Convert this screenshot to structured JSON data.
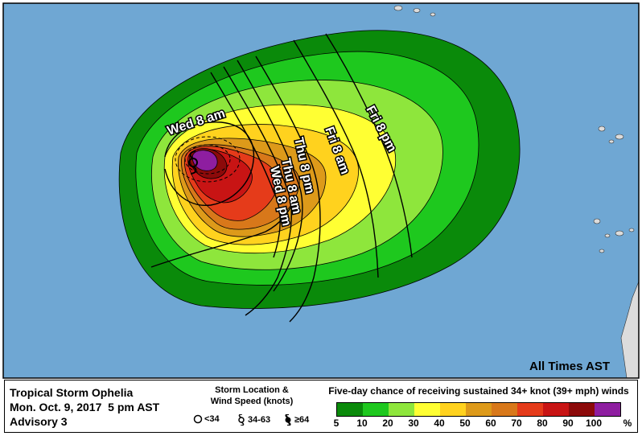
{
  "map": {
    "ocean_color": "#6fa7d3",
    "land_color": "#dcdcdc",
    "time_note": "All Times AST",
    "track_labels": [
      "Wed 8 am",
      "Wed 8 pm",
      "Thu 8 am",
      "Thu 8 pm",
      "Fri 8 am",
      "Fri 8 pm"
    ]
  },
  "legend": {
    "storm_name": "Tropical Storm Ophelia",
    "issued": "Mon. Oct. 9, 2017  5 pm AST",
    "advisory": "Advisory 3",
    "storm_key_title_1": "Storm Location &",
    "storm_key_title_2": "Wind Speed (knots)",
    "storm_keys": [
      {
        "icon": "open-circle-icon",
        "label": "<34"
      },
      {
        "icon": "tropical-storm-icon",
        "label": "34-63"
      },
      {
        "icon": "hurricane-icon",
        "label": "≥64"
      }
    ],
    "probability_title": "Five-day chance of receiving sustained 34+ knot (39+ mph) winds",
    "scale_colors": [
      "#0a8a0a",
      "#1ec81e",
      "#8ee63c",
      "#ffff33",
      "#ffd21e",
      "#dd9a1a",
      "#d8781a",
      "#e53b1a",
      "#c81414",
      "#8c0a0a",
      "#8e1ea0"
    ],
    "scale_ticks": [
      "5",
      "10",
      "20",
      "30",
      "40",
      "50",
      "60",
      "70",
      "80",
      "90",
      "100",
      "%"
    ]
  }
}
